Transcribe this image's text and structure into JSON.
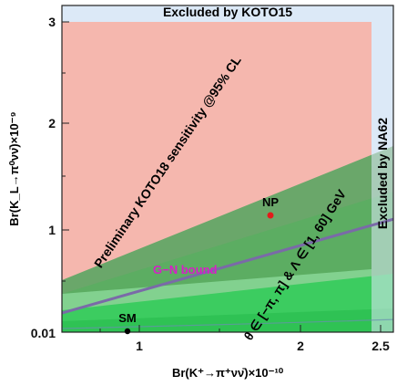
{
  "chart_data": {
    "type": "area",
    "x_scale": "log",
    "y_scale": "log",
    "xlim": [
      0.7,
      2.65
    ],
    "ylim": [
      0.01,
      3.5
    ],
    "xticks": [
      {
        "value": 1,
        "label": "1"
      },
      {
        "value": 2,
        "label": "2"
      },
      {
        "value": 2.5,
        "label": "2.5"
      }
    ],
    "yticks": [
      {
        "value": 0.01,
        "label": "0.01"
      },
      {
        "value": 1,
        "label": "1"
      },
      {
        "value": 2,
        "label": "2"
      },
      {
        "value": 3,
        "label": "3"
      }
    ],
    "xlabel": "Br(K⁺→π⁺νν̄)×10⁻¹⁰",
    "ylabel": "Br(K_L→π⁰νν̄)×10⁻⁹",
    "regions": {
      "koto15": {
        "label": "Excluded by KOTO15",
        "ymin": 3.0,
        "color": "#dce9f7"
      },
      "na62": {
        "label": "Excluded by NA62",
        "xmin": 2.44,
        "color": "#dce9f7"
      },
      "koto18": {
        "label": "Preliminary KOTO18 sensitivity @95% CL",
        "color": "#f5b7ae"
      },
      "theta_scan": {
        "label": "θ ∈ [−π, π] & Λ ∈ [1, 60] GeV",
        "color": "#3cc060"
      }
    },
    "gn_bound": {
      "label": "G−N bound",
      "color": "#7a6aa8"
    },
    "points": [
      {
        "name": "SM",
        "x": 0.92,
        "y": 0.03,
        "color": "#000000"
      },
      {
        "name": "NP",
        "x": 1.74,
        "y": 1.14,
        "color": "#e31b1b"
      }
    ]
  },
  "colors": {
    "frame": "#222222",
    "koto18_fill": "#f5b7ae",
    "excluded_fill": "#dce9f7",
    "green_dark": "#5a9a5c",
    "green_mid": "#48b65e",
    "green_light": "#7fd08a",
    "green_bright": "#34cc5a"
  }
}
